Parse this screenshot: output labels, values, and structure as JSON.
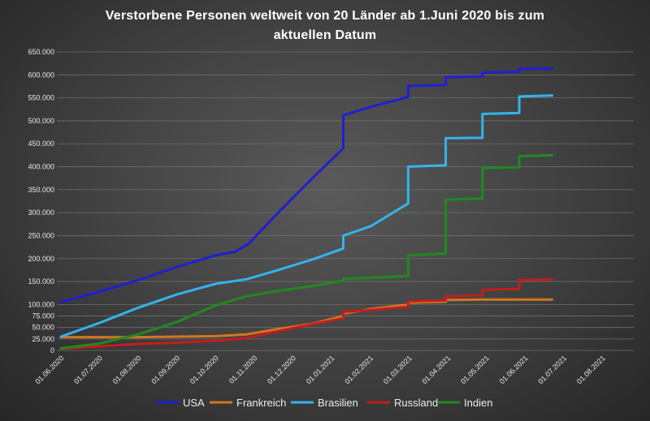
{
  "chart_data": {
    "type": "line",
    "title_line1": "Verstorbene Personen weltweit von 20 Länder ab 1.Juni 2020 bis zum",
    "title_line2": "aktuellen Datum",
    "ylim": [
      0,
      650000
    ],
    "y_ticks": [
      "650.000",
      "600.000",
      "550.000",
      "500.000",
      "450.000",
      "400.000",
      "350.000",
      "300.000",
      "250.000",
      "200.000",
      "150.000",
      "100.000",
      "75.000",
      "50.000",
      "25.000",
      "0"
    ],
    "y_tick_values": [
      650000,
      600000,
      550000,
      500000,
      450000,
      400000,
      350000,
      300000,
      250000,
      200000,
      150000,
      100000,
      75000,
      50000,
      25000,
      0
    ],
    "x_ticks": [
      "01.06.2020",
      "01.07.2020",
      "01.08.2020",
      "01.09.2020",
      "01.10.2020",
      "01.11.2020",
      "01.12.2020",
      "01.01.2021",
      "01.02.2021",
      "01.03.2021",
      "01.04.2021",
      "01.05.2021",
      "01.06.2021",
      "01.07.2021",
      "01.08.2021"
    ],
    "grid": true,
    "legend_position": "bottom",
    "series": [
      {
        "name": "USA",
        "color": "#1f1fd6",
        "points": [
          [
            0,
            105000
          ],
          [
            1,
            128000
          ],
          [
            2,
            153000
          ],
          [
            3,
            182000
          ],
          [
            4,
            207000
          ],
          [
            4.5,
            215000
          ],
          [
            4.85,
            232000
          ],
          [
            5.5,
            290000
          ],
          [
            6.5,
            375000
          ],
          [
            7.3,
            440000
          ],
          [
            7.3,
            512000
          ],
          [
            8,
            530000
          ],
          [
            8.98,
            552000
          ],
          [
            8.98,
            576000
          ],
          [
            9.95,
            578000
          ],
          [
            9.95,
            595000
          ],
          [
            10.9,
            597000
          ],
          [
            10.9,
            605000
          ],
          [
            11.85,
            607000
          ],
          [
            11.85,
            613000
          ],
          [
            12.7,
            614000
          ]
        ]
      },
      {
        "name": "Frankreich",
        "color": "#d2761f",
        "points": [
          [
            0,
            29000
          ],
          [
            1,
            29000
          ],
          [
            2,
            29000
          ],
          [
            3,
            30000
          ],
          [
            4,
            31000
          ],
          [
            4.8,
            35000
          ],
          [
            5.5,
            45000
          ],
          [
            6.5,
            58000
          ],
          [
            7.3,
            75000
          ],
          [
            7.3,
            80000
          ],
          [
            8,
            90000
          ],
          [
            8.98,
            100000
          ],
          [
            8.98,
            104000
          ],
          [
            9.95,
            106000
          ],
          [
            9.95,
            110000
          ],
          [
            10.9,
            111000
          ],
          [
            11.85,
            111000
          ],
          [
            12.7,
            111000
          ]
        ]
      },
      {
        "name": "Brasilien",
        "color": "#33b4ec",
        "points": [
          [
            0,
            30000
          ],
          [
            1,
            60000
          ],
          [
            2,
            93000
          ],
          [
            3,
            122000
          ],
          [
            4,
            145000
          ],
          [
            4.8,
            155000
          ],
          [
            5.5,
            172000
          ],
          [
            6.5,
            198000
          ],
          [
            7.3,
            222000
          ],
          [
            7.3,
            250000
          ],
          [
            8,
            270000
          ],
          [
            8.98,
            320000
          ],
          [
            8.98,
            400000
          ],
          [
            9.95,
            403000
          ],
          [
            9.95,
            462000
          ],
          [
            10.9,
            463000
          ],
          [
            10.9,
            515000
          ],
          [
            11.85,
            517000
          ],
          [
            11.85,
            553000
          ],
          [
            12.7,
            555000
          ]
        ]
      },
      {
        "name": "Russland",
        "color": "#c31d1d",
        "points": [
          [
            0,
            4000
          ],
          [
            1,
            9000
          ],
          [
            2,
            14000
          ],
          [
            3,
            17000
          ],
          [
            4,
            21000
          ],
          [
            4.8,
            27000
          ],
          [
            5.5,
            40000
          ],
          [
            6.5,
            57000
          ],
          [
            7.3,
            70000
          ],
          [
            7.3,
            84000
          ],
          [
            8,
            88000
          ],
          [
            8.98,
            95000
          ],
          [
            8.98,
            107000
          ],
          [
            9.95,
            109000
          ],
          [
            9.95,
            118000
          ],
          [
            10.9,
            120000
          ],
          [
            10.9,
            132000
          ],
          [
            11.85,
            134000
          ],
          [
            11.85,
            153000
          ],
          [
            12.7,
            155000
          ]
        ]
      },
      {
        "name": "Indien",
        "color": "#1f8a1f",
        "points": [
          [
            0,
            5000
          ],
          [
            1,
            15000
          ],
          [
            2,
            35000
          ],
          [
            3,
            62000
          ],
          [
            4,
            98000
          ],
          [
            4.8,
            118000
          ],
          [
            5.5,
            128000
          ],
          [
            6.5,
            140000
          ],
          [
            7.3,
            152000
          ],
          [
            7.3,
            156000
          ],
          [
            8,
            158000
          ],
          [
            8.98,
            162000
          ],
          [
            8.98,
            207000
          ],
          [
            9.95,
            211000
          ],
          [
            9.95,
            328000
          ],
          [
            10.9,
            331000
          ],
          [
            10.9,
            397000
          ],
          [
            11.85,
            399000
          ],
          [
            11.85,
            423000
          ],
          [
            12.7,
            425000
          ]
        ]
      }
    ]
  }
}
